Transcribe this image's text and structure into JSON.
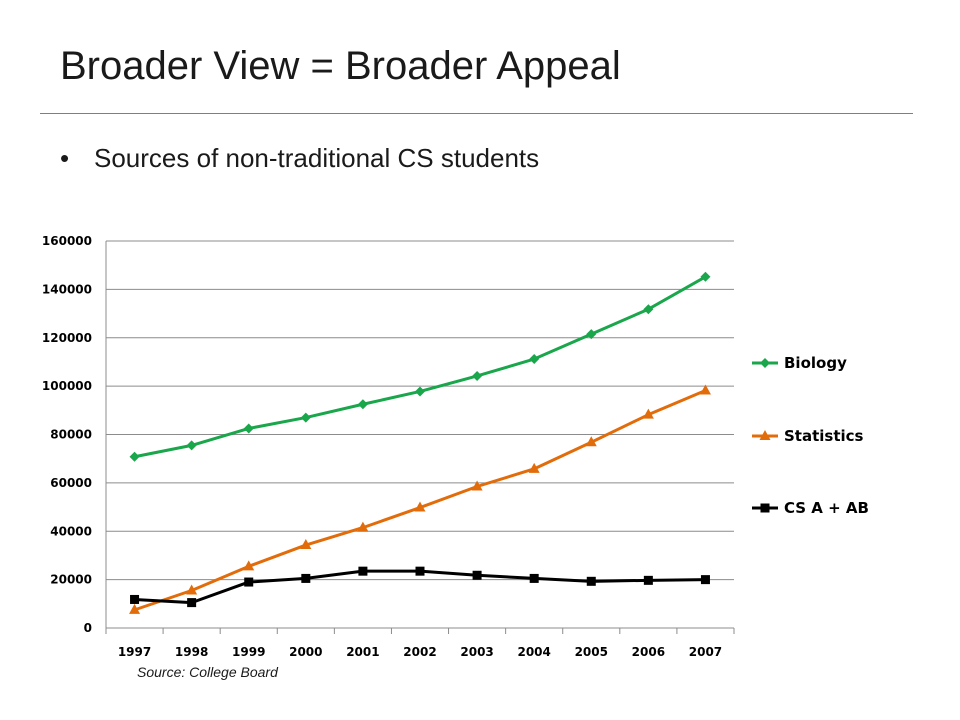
{
  "slide": {
    "title": "Broader View = Broader Appeal",
    "bullet": "Sources of non-traditional CS students",
    "bullet_marker": "•",
    "source_note": "Source: College Board"
  },
  "chart_data": {
    "type": "line",
    "title": "",
    "xlabel": "",
    "ylabel": "",
    "categories": [
      "1997",
      "1998",
      "1999",
      "2000",
      "2001",
      "2002",
      "2003",
      "2004",
      "2005",
      "2006",
      "2007"
    ],
    "ylim": [
      0,
      160000
    ],
    "yticks": [
      0,
      20000,
      40000,
      60000,
      80000,
      100000,
      120000,
      140000,
      160000
    ],
    "grid": true,
    "legend_position": "right",
    "series": [
      {
        "name": "Biology",
        "color": "#1aa64b",
        "marker": "diamond",
        "values": [
          70800,
          75500,
          82500,
          87000,
          92500,
          97800,
          104200,
          111200,
          121500,
          131800,
          145200
        ]
      },
      {
        "name": "Statistics",
        "color": "#e36c0a",
        "marker": "triangle",
        "values": [
          7500,
          15500,
          25500,
          34300,
          41500,
          49800,
          58500,
          65800,
          76800,
          88200,
          98200
        ]
      },
      {
        "name": "CS A + AB",
        "color": "#000000",
        "marker": "square",
        "values": [
          11800,
          10500,
          19000,
          20500,
          23500,
          23500,
          21800,
          20500,
          19300,
          19700,
          20000
        ]
      }
    ]
  }
}
